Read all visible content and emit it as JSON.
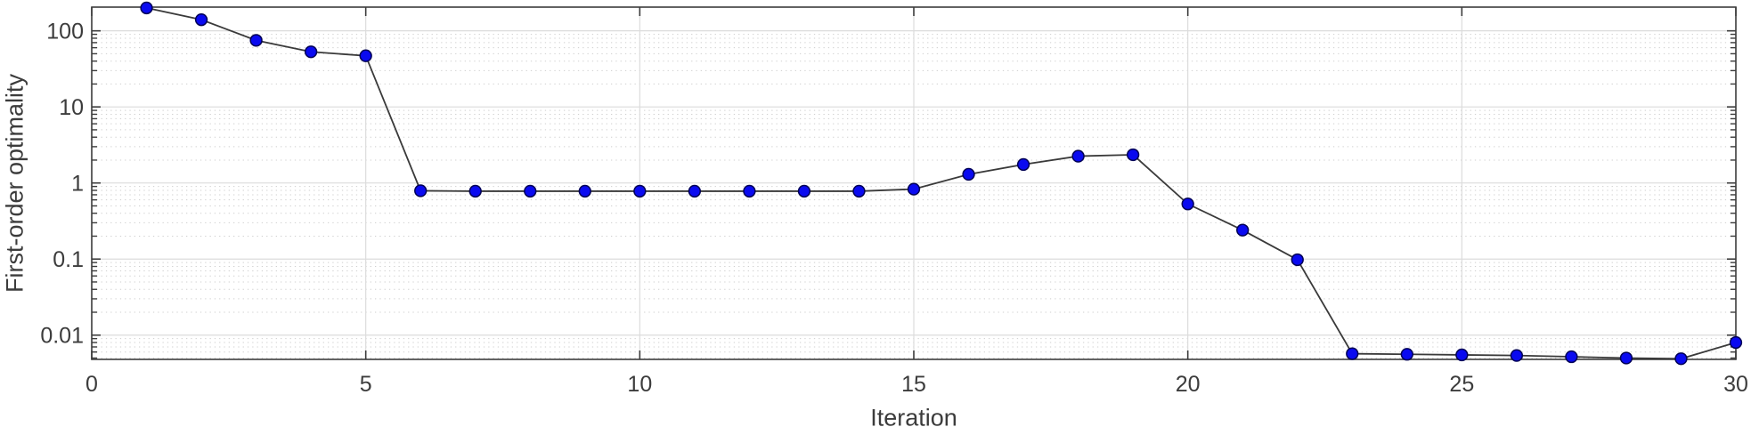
{
  "chart_data": {
    "type": "line",
    "title": "",
    "xlabel": "Iteration",
    "ylabel": "First-order optimality",
    "yscale": "log",
    "xlim": [
      0,
      30
    ],
    "ylim": [
      0.0048,
      205
    ],
    "x_ticks": [
      0,
      5,
      10,
      15,
      20,
      25,
      30
    ],
    "x_tick_labels": [
      "0",
      "5",
      "10",
      "15",
      "20",
      "25",
      "30"
    ],
    "y_ticks": [
      100,
      10,
      1,
      0.1,
      0.01
    ],
    "y_tick_labels": [
      "100",
      "10",
      "1",
      "0.1",
      "0.01"
    ],
    "grid": {
      "major": true,
      "minor": true,
      "minor_style": "dotted"
    },
    "legend": "none",
    "series": [
      {
        "name": "first-order-optimality",
        "marker": "filled-circle",
        "x": [
          1,
          2,
          3,
          4,
          5,
          6,
          7,
          8,
          9,
          10,
          11,
          12,
          13,
          14,
          15,
          16,
          17,
          18,
          19,
          20,
          21,
          22,
          23,
          24,
          25,
          26,
          27,
          28,
          29,
          30
        ],
        "y": [
          200,
          140,
          75,
          53,
          47,
          0.79,
          0.78,
          0.78,
          0.78,
          0.78,
          0.78,
          0.78,
          0.78,
          0.78,
          0.83,
          1.3,
          1.75,
          2.25,
          2.35,
          0.53,
          0.24,
          0.098,
          0.0057,
          0.0056,
          0.0055,
          0.0054,
          0.0052,
          0.005,
          0.0049,
          0.008
        ]
      }
    ],
    "colors": {
      "marker_fill": "#0a0af0",
      "marker_edge": "#000055",
      "line": "#3a3a3a",
      "grid_major": "#dcdcdc",
      "grid_minor": "#bfbfbf",
      "axis": "#3c3c3c",
      "text": "#3c3c3c",
      "background": "#ffffff"
    }
  }
}
